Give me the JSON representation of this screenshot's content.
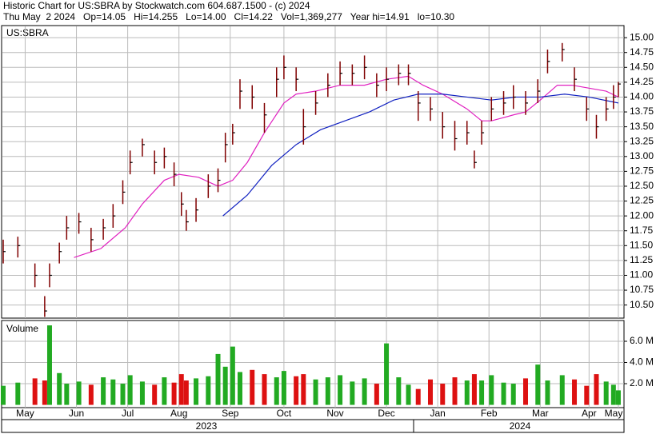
{
  "header": {
    "line1": "Historic Chart for US:SBRA by Stockwatch.com 604.687.1500 - (c) 2024",
    "line2": "Thu May  2 2024   Op=14.05   Hi=14.255   Lo=14.00   Cl=14.22   Vol=1,369,277   Year hi=14.91   lo=10.30"
  },
  "x_axis_years": [
    "2023",
    "2024"
  ],
  "chart_data": [
    {
      "type": "ohlc",
      "title": "US:SBRA",
      "color": "#800000",
      "grid": true,
      "x": [
        0,
        6,
        13,
        17,
        19,
        23,
        26,
        31,
        36,
        41,
        45,
        49,
        52,
        57,
        62,
        66,
        70,
        73,
        75,
        79,
        84,
        88,
        91,
        94,
        97,
        102,
        107,
        112,
        115,
        120,
        123,
        128,
        133,
        138,
        143,
        148,
        153,
        157,
        162,
        166,
        170,
        175,
        180,
        185,
        190,
        193,
        196,
        200,
        205,
        209,
        214,
        219,
        223,
        229,
        234,
        239,
        243,
        247,
        250,
        252
      ],
      "high": [
        11.6,
        11.65,
        11.2,
        10.65,
        11.2,
        11.55,
        12.0,
        12.05,
        11.8,
        11.95,
        12.2,
        12.6,
        13.1,
        13.3,
        13.1,
        13.15,
        12.9,
        12.4,
        12.1,
        12.3,
        12.7,
        12.8,
        13.4,
        13.55,
        14.3,
        14.2,
        13.9,
        14.5,
        14.7,
        14.5,
        13.8,
        14.1,
        14.4,
        14.6,
        14.55,
        14.7,
        14.4,
        14.5,
        14.55,
        14.55,
        14.1,
        14.0,
        13.75,
        13.6,
        13.6,
        13.1,
        13.6,
        14.0,
        14.1,
        14.2,
        14.1,
        14.3,
        14.8,
        14.91,
        14.5,
        14.0,
        13.7,
        14.0,
        14.2,
        14.255
      ],
      "low": [
        11.2,
        11.3,
        10.8,
        10.3,
        10.8,
        11.2,
        11.6,
        11.7,
        11.4,
        11.6,
        11.8,
        12.2,
        12.7,
        13.0,
        12.7,
        12.8,
        12.5,
        12.0,
        11.75,
        11.9,
        12.3,
        12.4,
        12.9,
        13.2,
        13.8,
        13.8,
        13.4,
        14.0,
        14.3,
        14.1,
        13.2,
        13.7,
        14.0,
        14.2,
        14.2,
        14.3,
        14.0,
        14.1,
        14.2,
        14.2,
        13.6,
        13.6,
        13.3,
        13.1,
        13.2,
        12.8,
        13.2,
        13.6,
        13.7,
        13.8,
        13.7,
        13.9,
        14.4,
        14.6,
        14.1,
        13.6,
        13.3,
        13.6,
        13.8,
        14.0
      ],
      "close": [
        11.4,
        11.5,
        11.0,
        10.4,
        11.0,
        11.4,
        11.8,
        11.9,
        11.6,
        11.8,
        12.0,
        12.4,
        12.9,
        13.2,
        12.9,
        13.0,
        12.7,
        12.2,
        11.9,
        12.1,
        12.5,
        12.6,
        13.2,
        13.4,
        14.1,
        14.0,
        13.7,
        14.3,
        14.5,
        14.3,
        13.5,
        13.9,
        14.2,
        14.4,
        14.4,
        14.5,
        14.2,
        14.3,
        14.4,
        14.4,
        13.9,
        13.8,
        13.5,
        13.3,
        13.4,
        12.9,
        13.4,
        13.8,
        13.9,
        14.0,
        13.9,
        14.1,
        14.6,
        14.8,
        14.3,
        13.8,
        13.5,
        13.8,
        14.0,
        14.22
      ],
      "series": [
        {
          "color": "#e020c0",
          "x": [
            29,
            40,
            50,
            57,
            66,
            72,
            80,
            88,
            94,
            100,
            107,
            115,
            120,
            128,
            138,
            148,
            157,
            166,
            172,
            180,
            190,
            196,
            200,
            209,
            214,
            220,
            227,
            233,
            240,
            247,
            252
          ],
          "values": [
            11.3,
            11.45,
            11.8,
            12.2,
            12.6,
            12.7,
            12.65,
            12.5,
            12.6,
            12.9,
            13.4,
            13.9,
            14.05,
            14.1,
            14.2,
            14.2,
            14.3,
            14.35,
            14.2,
            14.05,
            13.8,
            13.6,
            13.6,
            13.7,
            13.75,
            13.95,
            14.2,
            14.2,
            14.15,
            14.1,
            14.0
          ]
        },
        {
          "color": "#1020c0",
          "x": [
            90,
            100,
            110,
            120,
            130,
            140,
            150,
            160,
            170,
            180,
            190,
            200,
            210,
            220,
            230,
            240,
            252
          ],
          "values": [
            12.0,
            12.35,
            12.85,
            13.2,
            13.45,
            13.6,
            13.75,
            13.95,
            14.05,
            14.05,
            14.0,
            13.95,
            14.0,
            14.0,
            14.05,
            14.0,
            13.9
          ]
        }
      ],
      "xlim": [
        0,
        253
      ],
      "ylim": [
        10.28,
        15.19
      ],
      "yticks": [
        {
          "value": 10.5,
          "label": "10.50"
        },
        {
          "value": 10.75,
          "label": "10.75"
        },
        {
          "value": 11,
          "label": "11.00"
        },
        {
          "value": 11.25,
          "label": "11.25"
        },
        {
          "value": 11.5,
          "label": "11.50"
        },
        {
          "value": 11.75,
          "label": "11.75"
        },
        {
          "value": 12,
          "label": "12.00"
        },
        {
          "value": 12.25,
          "label": "12.25"
        },
        {
          "value": 12.5,
          "label": "12.50"
        },
        {
          "value": 12.75,
          "label": "12.75"
        },
        {
          "value": 13,
          "label": "13.00"
        },
        {
          "value": 13.25,
          "label": "13.25"
        },
        {
          "value": 13.5,
          "label": "13.50"
        },
        {
          "value": 13.75,
          "label": "13.75"
        },
        {
          "value": 14,
          "label": "14.00"
        },
        {
          "value": 14.25,
          "label": "14.25"
        },
        {
          "value": 14.5,
          "label": "14.50"
        },
        {
          "value": 14.75,
          "label": "14.75"
        },
        {
          "value": 15,
          "label": "15.00"
        }
      ],
      "xticks": [
        {
          "value": 9,
          "label": "May"
        },
        {
          "value": 30,
          "label": "Jun"
        },
        {
          "value": 51,
          "label": "Jul"
        },
        {
          "value": 72,
          "label": "Aug"
        },
        {
          "value": 93,
          "label": "Sep"
        },
        {
          "value": 115,
          "label": "Oct"
        },
        {
          "value": 136,
          "label": "Nov"
        },
        {
          "value": 157,
          "label": "Dec"
        },
        {
          "value": 178,
          "label": "Jan"
        },
        {
          "value": 199,
          "label": "Feb"
        },
        {
          "value": 220,
          "label": "Mar"
        },
        {
          "value": 240,
          "label": "Apr"
        },
        {
          "value": 252,
          "label": "May"
        }
      ]
    },
    {
      "type": "bar",
      "title": "Volume",
      "up_color": "#22aa22",
      "down_color": "#dd1111",
      "grid": true,
      "values": [
        1800000,
        2100000,
        2500000,
        2300000,
        7500000,
        3000000,
        2000000,
        2200000,
        1900000,
        2600000,
        2400000,
        2000000,
        2800000,
        2200000,
        1900000,
        2600000,
        2100000,
        2900000,
        2300000,
        2500000,
        2700000,
        4800000,
        3600000,
        5500000,
        3100000,
        3300000,
        2900000,
        2600000,
        3200000,
        2700000,
        2900000,
        2400000,
        2600000,
        2800000,
        2200000,
        2500000,
        2000000,
        5800000,
        2600000,
        1900000,
        1500000,
        2400000,
        2000000,
        2600000,
        2300000,
        2900000,
        2300000,
        2800000,
        2100000,
        2000000,
        2500000,
        3800000,
        2300000,
        2800000,
        2400000,
        1800000,
        2900000,
        2200000,
        1900000,
        1369277
      ],
      "ylim": [
        -260000,
        7960000
      ],
      "yticks": [
        {
          "value": 2000000,
          "label": "2.0 M"
        },
        {
          "value": 4000000,
          "label": "4.0 M"
        },
        {
          "value": 6000000,
          "label": "6.0 M"
        }
      ]
    }
  ]
}
